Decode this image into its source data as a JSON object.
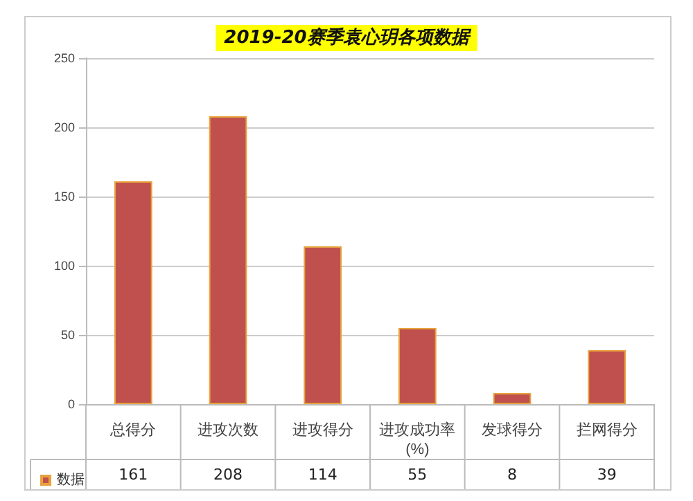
{
  "chart_data": {
    "type": "bar",
    "title": "2019-20赛季袁心玥各项数据",
    "categories": [
      "总得分",
      "进攻次数",
      "进攻得分",
      "进攻成功率(%)",
      "发球得分",
      "拦网得分"
    ],
    "series": [
      {
        "name": "数据",
        "color": "#c0504d",
        "values": [
          161,
          208,
          114,
          55,
          8,
          39
        ]
      }
    ],
    "ylim": [
      0,
      250
    ],
    "yticks": [
      0,
      50,
      100,
      150,
      200,
      250
    ],
    "grid": "y",
    "legend": "bottom left",
    "data_labels": true
  }
}
